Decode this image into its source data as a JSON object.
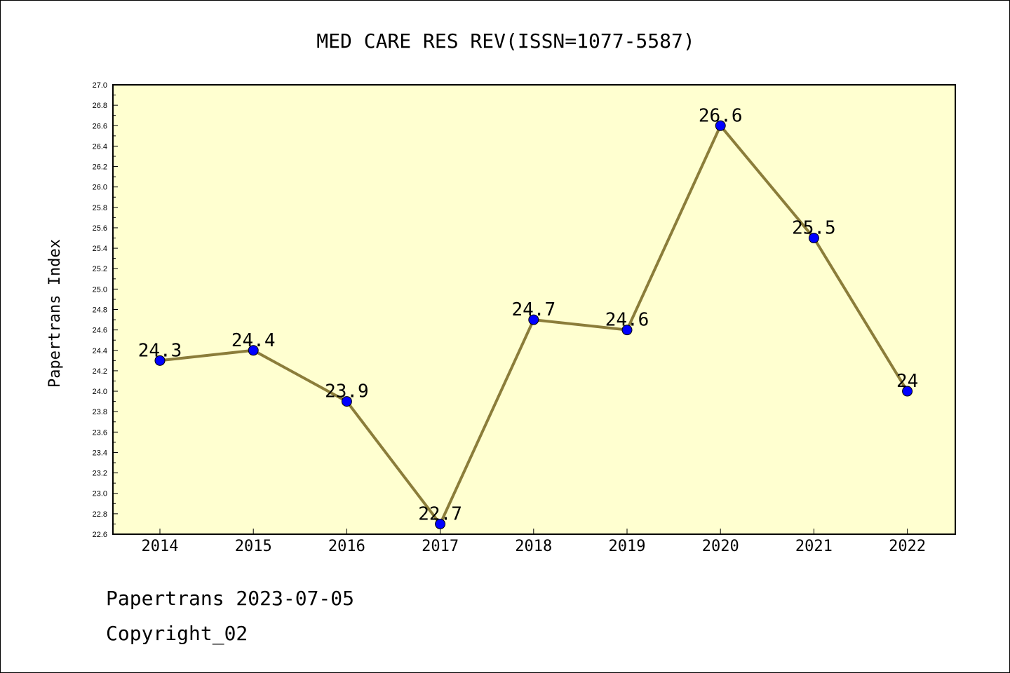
{
  "chart_data": {
    "type": "line",
    "title": "MED CARE RES REV(ISSN=1077-5587)",
    "ylabel": "Papertrans Index",
    "xlabel": "",
    "categories": [
      "2014",
      "2015",
      "2016",
      "2017",
      "2018",
      "2019",
      "2020",
      "2021",
      "2022"
    ],
    "series": [
      {
        "values": [
          24.3,
          24.4,
          23.9,
          22.7,
          24.7,
          24.6,
          26.6,
          25.5,
          24.0
        ],
        "labels": [
          "24.3",
          "24.4",
          "23.9",
          "22.7",
          "24.7",
          "24.6",
          "26.6",
          "25.5",
          "24"
        ],
        "line_color": "#8B7D3A",
        "marker_color": "#0000FF"
      }
    ],
    "ylim": [
      22.6,
      27.0
    ],
    "y_ticks": [
      "22.6",
      "22.8",
      "23.0",
      "23.2",
      "23.4",
      "23.6",
      "23.8",
      "24.0",
      "24.2",
      "24.4",
      "24.6",
      "24.8",
      "25.0",
      "25.2",
      "25.4",
      "25.6",
      "25.8",
      "26.0",
      "26.2",
      "26.4",
      "26.6",
      "26.8",
      "27.0"
    ],
    "grid": false,
    "legend": "none",
    "plot_background": "#FFFFD0"
  },
  "footer": {
    "line1": "Papertrans 2023-07-05",
    "line2": "Copyright_02"
  }
}
